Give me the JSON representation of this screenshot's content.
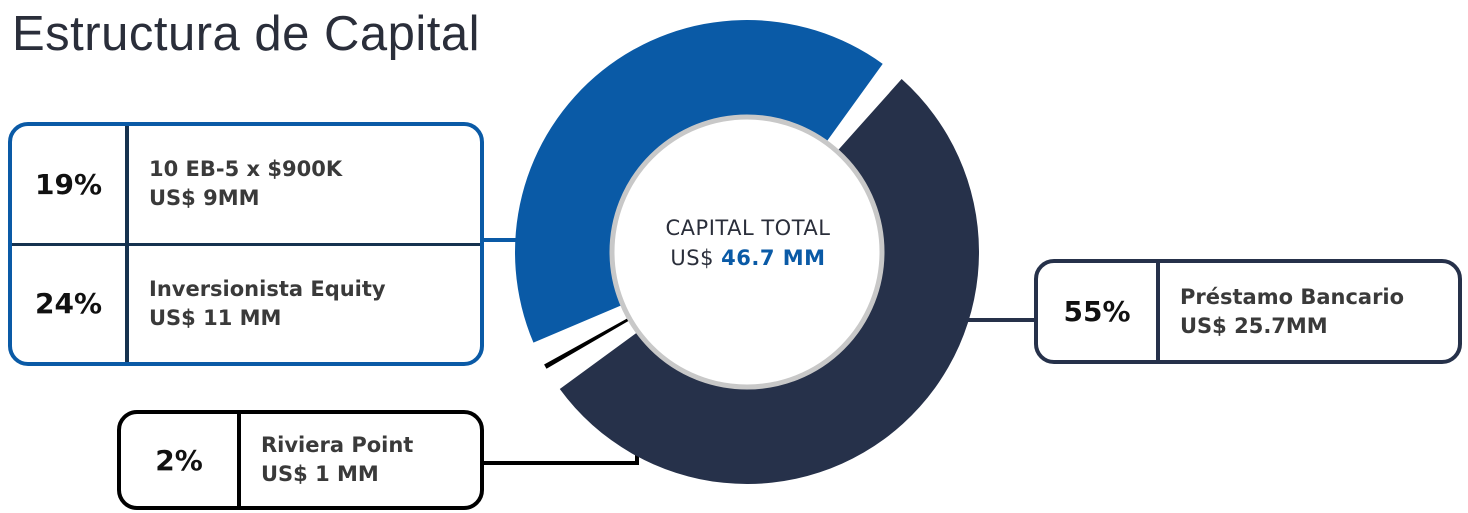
{
  "title": "Estructura de Capital",
  "center": {
    "line1": "CAPITAL TOTAL",
    "prefix": "US$",
    "amount": "46.7 MM"
  },
  "colors": {
    "blue": "#0a5aa6",
    "navy": "#26314a",
    "black": "#000000",
    "ring": "#c8c8c8"
  },
  "chart_data": {
    "type": "pie",
    "series": [
      {
        "percent": "19%",
        "value": 19,
        "label": "10 EB-5 x $900K",
        "amount": "US$ 9MM",
        "color": "#0a5aa6"
      },
      {
        "percent": "24%",
        "value": 24,
        "label": "Inversionista Equity",
        "amount": "US$ 11 MM",
        "color": "#0a5aa6"
      },
      {
        "percent": "55%",
        "value": 55,
        "label": "Préstamo Bancario",
        "amount": "US$ 25.7MM",
        "color": "#26314a"
      },
      {
        "percent": "2%",
        "value": 2,
        "label": "Riviera Point",
        "amount": "US$ 1 MM",
        "color": "#000000"
      }
    ]
  }
}
